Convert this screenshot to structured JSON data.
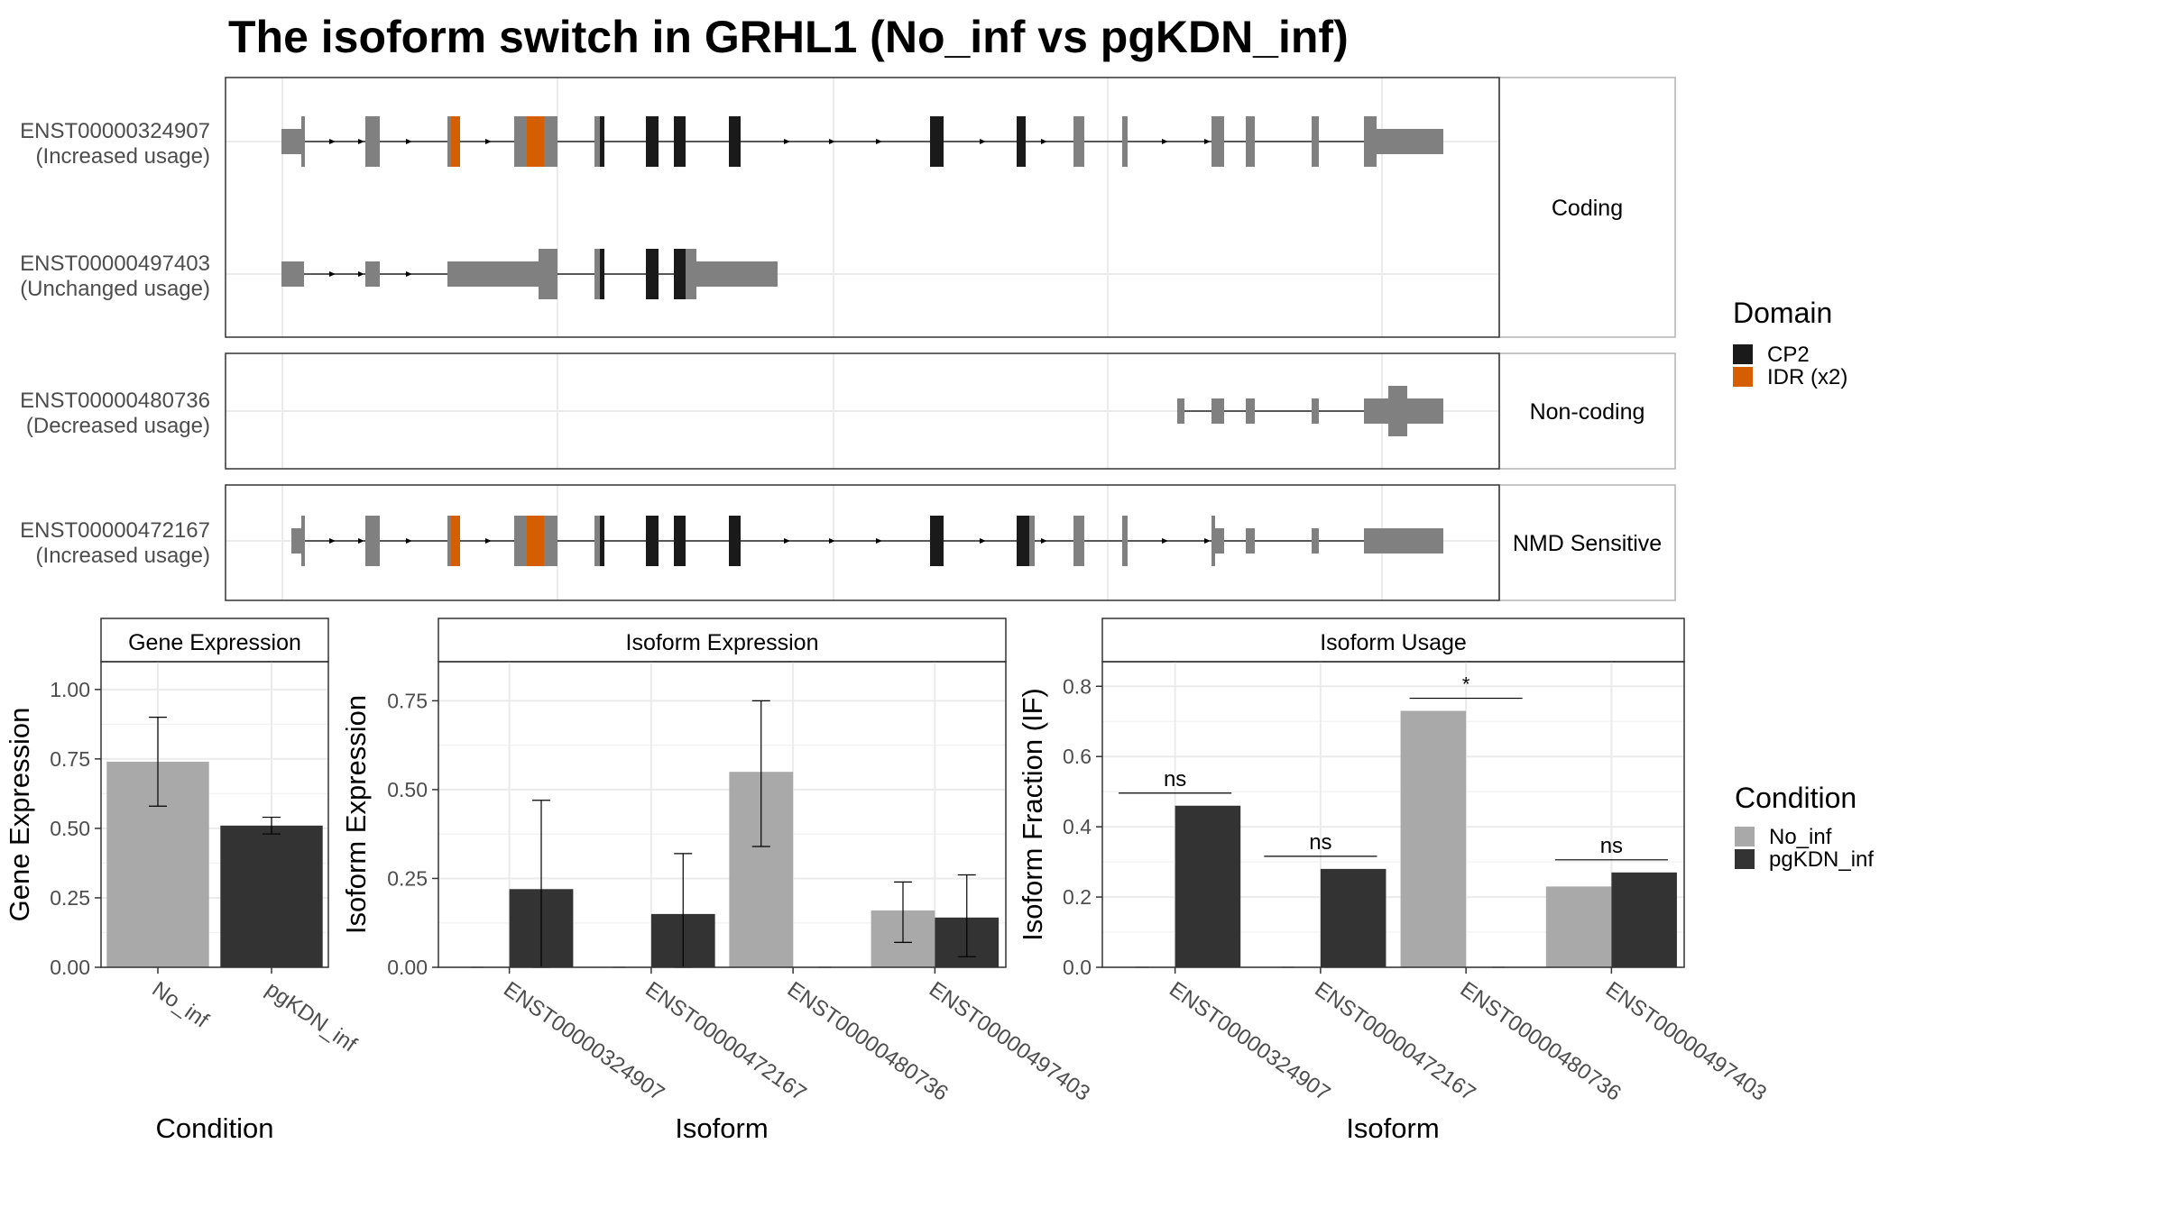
{
  "title": "The isoform switch in GRHL1 (No_inf vs pgKDN_inf)",
  "structure": {
    "groups": [
      {
        "label": "Coding",
        "transcripts": [
          {
            "id": "ENST00000324907",
            "usage": "(Increased usage)"
          },
          {
            "id": "ENST00000497403",
            "usage": "(Unchanged usage)"
          }
        ]
      },
      {
        "label": "Non-coding",
        "transcripts": [
          {
            "id": "ENST00000480736",
            "usage": "(Decreased usage)"
          }
        ]
      },
      {
        "label": "NMD Sensitive",
        "transcripts": [
          {
            "id": "ENST00000472167",
            "usage": "(Increased usage)"
          }
        ]
      }
    ],
    "domain_legend": {
      "title": "Domain",
      "items": [
        {
          "label": "CP2",
          "color": "#1a1a1a"
        },
        {
          "label": "IDR (x2)",
          "color": "#d55e00"
        }
      ]
    },
    "colors": {
      "exon": "#808080",
      "cp2": "#1a1a1a",
      "idr": "#d55e00",
      "intron": "#000000"
    }
  },
  "condition_legend": {
    "title": "Condition",
    "items": [
      {
        "label": "No_inf",
        "color": "#a9a9a9"
      },
      {
        "label": "pgKDN_inf",
        "color": "#333333"
      }
    ]
  },
  "chart_data": [
    {
      "type": "bar",
      "title": "Gene Expression",
      "xlabel": "Condition",
      "ylabel": "Gene Expression",
      "ylim": [
        0,
        1.1
      ],
      "yticks": [
        "0.00",
        "0.25",
        "0.50",
        "0.75",
        "1.00"
      ],
      "categories": [
        "No_inf",
        "pgKDN_inf"
      ],
      "values": [
        0.74,
        0.51
      ],
      "errors": [
        [
          0.58,
          0.9
        ],
        [
          0.48,
          0.54
        ]
      ],
      "bar_colors": [
        "#a9a9a9",
        "#333333"
      ]
    },
    {
      "type": "bar",
      "title": "Isoform Expression",
      "xlabel": "Isoform",
      "ylabel": "Isoform Expression",
      "ylim": [
        0,
        0.86
      ],
      "yticks": [
        "0.00",
        "0.25",
        "0.50",
        "0.75"
      ],
      "categories": [
        "ENST00000324907",
        "ENST00000472167",
        "ENST00000480736",
        "ENST00000497403"
      ],
      "series": [
        {
          "name": "No_inf",
          "values": [
            0.0,
            0.0,
            0.55,
            0.16
          ],
          "errors": [
            null,
            null,
            [
              0.34,
              0.75
            ],
            [
              0.07,
              0.24
            ]
          ]
        },
        {
          "name": "pgKDN_inf",
          "values": [
            0.22,
            0.15,
            0.0,
            0.14
          ],
          "errors": [
            [
              0.0,
              0.47
            ],
            [
              0.0,
              0.32
            ],
            null,
            [
              0.03,
              0.26
            ]
          ]
        }
      ]
    },
    {
      "type": "bar",
      "title": "Isoform Usage",
      "xlabel": "Isoform",
      "ylabel": "Isoform Fraction (IF)",
      "ylim": [
        0,
        0.87
      ],
      "yticks": [
        "0.0",
        "0.2",
        "0.4",
        "0.6",
        "0.8"
      ],
      "categories": [
        "ENST00000324907",
        "ENST00000472167",
        "ENST00000480736",
        "ENST00000497403"
      ],
      "series": [
        {
          "name": "No_inf",
          "values": [
            0.0,
            0.0,
            0.73,
            0.23
          ]
        },
        {
          "name": "pgKDN_inf",
          "values": [
            0.46,
            0.28,
            0.0,
            0.27
          ]
        }
      ],
      "significance": [
        "ns",
        "ns",
        "*",
        "ns"
      ]
    }
  ]
}
